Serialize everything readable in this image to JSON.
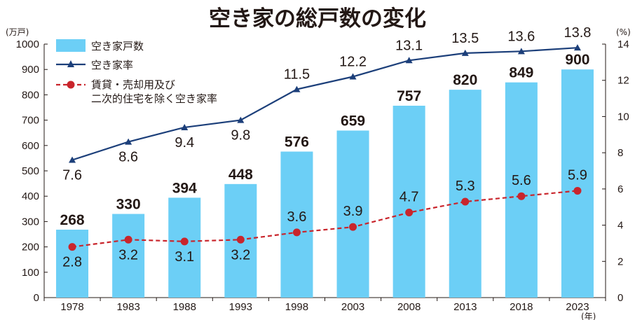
{
  "chart_data": {
    "type": "bar",
    "title": "空き家の総戸数の変化",
    "categories": [
      "1978",
      "1983",
      "1988",
      "1993",
      "1998",
      "2003",
      "2008",
      "2013",
      "2018",
      "2023"
    ],
    "x_unit": "(年)",
    "y_left": {
      "unit": "(万戸)",
      "range": [
        0,
        1000
      ],
      "ticks": [
        "0",
        "100",
        "200",
        "300",
        "400",
        "500",
        "600",
        "700",
        "800",
        "900",
        "1000"
      ]
    },
    "y_right": {
      "unit": "(%)",
      "range": [
        0,
        14
      ],
      "ticks": [
        "0",
        "2",
        "4",
        "6",
        "8",
        "10",
        "12",
        "14"
      ]
    },
    "series": [
      {
        "name": "空き家戸数",
        "kind": "bar",
        "axis": "left",
        "color": "#6ccff6",
        "values": [
          268,
          330,
          394,
          448,
          576,
          659,
          757,
          820,
          849,
          900
        ]
      },
      {
        "name": "空き家率",
        "kind": "line",
        "axis": "right",
        "color": "#1c3f7a",
        "values": [
          7.6,
          8.6,
          9.4,
          9.8,
          11.5,
          12.2,
          13.1,
          13.5,
          13.6,
          13.8
        ]
      },
      {
        "name_lines": [
          "賃貸・売却用及び",
          "二次的住宅を除く空き家率"
        ],
        "kind": "dashed-line",
        "axis": "right",
        "color": "#c9252c",
        "values": [
          2.8,
          3.2,
          3.1,
          3.2,
          3.6,
          3.9,
          4.7,
          5.3,
          5.6,
          5.9
        ]
      }
    ],
    "grid": false,
    "legend_position": "top-left"
  }
}
